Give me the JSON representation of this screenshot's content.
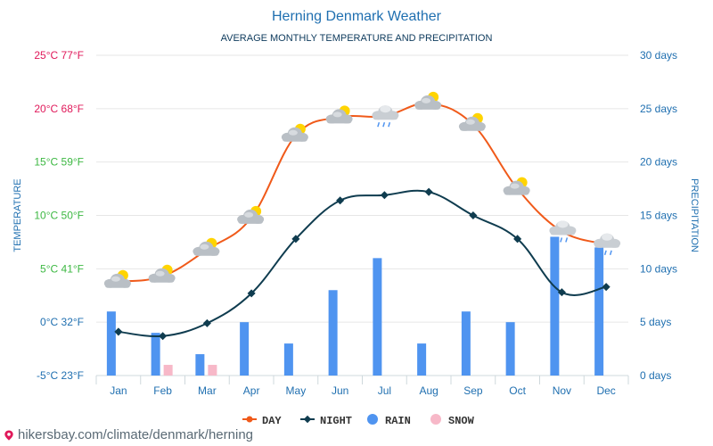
{
  "chart_data": {
    "type": "line",
    "title": "Herning Denmark Weather",
    "subtitle": "AVERAGE MONTHLY TEMPERATURE AND PRECIPITATION",
    "categories": [
      "Jan",
      "Feb",
      "Mar",
      "Apr",
      "May",
      "Jun",
      "Jul",
      "Aug",
      "Sep",
      "Oct",
      "Nov",
      "Dec"
    ],
    "left_axis": {
      "label": "TEMPERATURE",
      "min": -5,
      "max": 25,
      "ticks": [
        {
          "value": 25,
          "label": "25°C 77°F",
          "color": "#e0195a"
        },
        {
          "value": 20,
          "label": "20°C 68°F",
          "color": "#e0195a"
        },
        {
          "value": 15,
          "label": "15°C 59°F",
          "color": "#3db843"
        },
        {
          "value": 10,
          "label": "10°C 50°F",
          "color": "#3db843"
        },
        {
          "value": 5,
          "label": "5°C 41°F",
          "color": "#3db843"
        },
        {
          "value": 0,
          "label": "0°C 32°F",
          "color": "#1f6fb0"
        },
        {
          "value": -5,
          "label": "-5°C 23°F",
          "color": "#1f6fb0"
        }
      ]
    },
    "right_axis": {
      "label": "PRECIPITATION",
      "min": 0,
      "max": 30,
      "ticks": [
        {
          "value": 30,
          "label": "30 days"
        },
        {
          "value": 25,
          "label": "25 days"
        },
        {
          "value": 20,
          "label": "20 days"
        },
        {
          "value": 15,
          "label": "15 days"
        },
        {
          "value": 10,
          "label": "10 days"
        },
        {
          "value": 5,
          "label": "5 days"
        },
        {
          "value": 0,
          "label": "0 days"
        }
      ]
    },
    "series": [
      {
        "name": "DAY",
        "kind": "line",
        "axis": "left",
        "color": "#f05a1a",
        "values": [
          3.8,
          4.3,
          6.8,
          9.8,
          17.5,
          19.2,
          19.3,
          20.5,
          18.5,
          12.5,
          8.5,
          7.3
        ]
      },
      {
        "name": "NIGHT",
        "kind": "line",
        "axis": "left",
        "color": "#0f3c4f",
        "values": [
          -0.9,
          -1.3,
          -0.1,
          2.7,
          7.8,
          11.4,
          11.9,
          12.2,
          10.0,
          7.8,
          2.8,
          3.3
        ]
      },
      {
        "name": "RAIN",
        "kind": "bar",
        "axis": "right",
        "color": "#4f94f0",
        "values": [
          6,
          4,
          2,
          5,
          3,
          8,
          11,
          3,
          6,
          5,
          13,
          12
        ]
      },
      {
        "name": "SNOW",
        "kind": "bar",
        "axis": "right",
        "color": "#f7b8c8",
        "values": [
          0,
          1,
          1,
          0,
          0,
          0,
          0,
          0,
          0,
          0,
          0,
          0
        ]
      }
    ],
    "weather_icons": [
      "partly-cloudy",
      "partly-cloudy",
      "partly-cloudy",
      "partly-cloudy",
      "partly-cloudy",
      "partly-cloudy",
      "rain-cloud",
      "partly-cloudy",
      "partly-cloudy",
      "partly-cloudy",
      "rain-cloud",
      "rain-cloud"
    ],
    "grid": true,
    "legend_position": "bottom-center"
  },
  "colors": {
    "title": "#1f6fb0",
    "axis_text": "#1f6fb0",
    "grid": "#e6e6e6"
  },
  "footer": {
    "url": "hikersbay.com/climate/denmark/herning",
    "icon": "map-pin-icon"
  }
}
